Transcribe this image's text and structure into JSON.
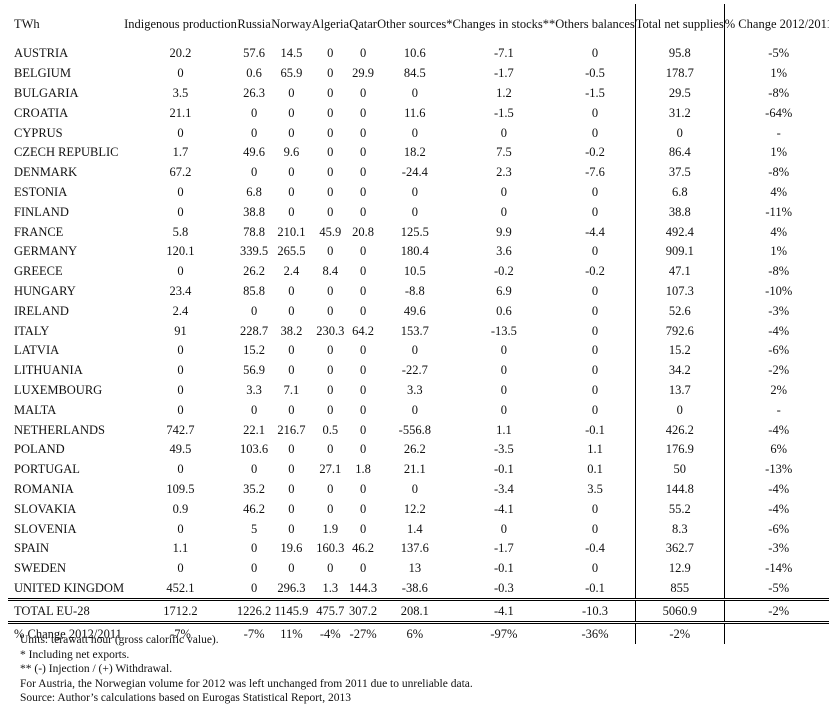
{
  "table": {
    "headers": [
      "TWh",
      "Indigenous production",
      "Russia",
      "Norway",
      "Algeria",
      "Qatar",
      "Other sources*",
      "Changes in stocks**",
      "Others balances",
      "Total net supplies",
      "% Change 2012/2011"
    ],
    "rows": [
      [
        "AUSTRIA",
        "20.2",
        "57.6",
        "14.5",
        "0",
        "0",
        "10.6",
        "-7.1",
        "0",
        "95.8",
        "-5%"
      ],
      [
        "BELGIUM",
        "0",
        "0.6",
        "65.9",
        "0",
        "29.9",
        "84.5",
        "-1.7",
        "-0.5",
        "178.7",
        "1%"
      ],
      [
        "BULGARIA",
        "3.5",
        "26.3",
        "0",
        "0",
        "0",
        "0",
        "1.2",
        "-1.5",
        "29.5",
        "-8%"
      ],
      [
        "CROATIA",
        "21.1",
        "0",
        "0",
        "0",
        "0",
        "11.6",
        "-1.5",
        "0",
        "31.2",
        "-64%"
      ],
      [
        "CYPRUS",
        "0",
        "0",
        "0",
        "0",
        "0",
        "0",
        "0",
        "0",
        "0",
        "-"
      ],
      [
        "CZECH REPUBLIC",
        "1.7",
        "49.6",
        "9.6",
        "0",
        "0",
        "18.2",
        "7.5",
        "-0.2",
        "86.4",
        "1%"
      ],
      [
        "DENMARK",
        "67.2",
        "0",
        "0",
        "0",
        "0",
        "-24.4",
        "2.3",
        "-7.6",
        "37.5",
        "-8%"
      ],
      [
        "ESTONIA",
        "0",
        "6.8",
        "0",
        "0",
        "0",
        "0",
        "0",
        "0",
        "6.8",
        "4%"
      ],
      [
        "FINLAND",
        "0",
        "38.8",
        "0",
        "0",
        "0",
        "0",
        "0",
        "0",
        "38.8",
        "-11%"
      ],
      [
        "FRANCE",
        "5.8",
        "78.8",
        "210.1",
        "45.9",
        "20.8",
        "125.5",
        "9.9",
        "-4.4",
        "492.4",
        "4%"
      ],
      [
        "GERMANY",
        "120.1",
        "339.5",
        "265.5",
        "0",
        "0",
        "180.4",
        "3.6",
        "0",
        "909.1",
        "1%"
      ],
      [
        "GREECE",
        "0",
        "26.2",
        "2.4",
        "8.4",
        "0",
        "10.5",
        "-0.2",
        "-0.2",
        "47.1",
        "-8%"
      ],
      [
        "HUNGARY",
        "23.4",
        "85.8",
        "0",
        "0",
        "0",
        "-8.8",
        "6.9",
        "0",
        "107.3",
        "-10%"
      ],
      [
        "IRELAND",
        "2.4",
        "0",
        "0",
        "0",
        "0",
        "49.6",
        "0.6",
        "0",
        "52.6",
        "-3%"
      ],
      [
        "ITALY",
        "91",
        "228.7",
        "38.2",
        "230.3",
        "64.2",
        "153.7",
        "-13.5",
        "0",
        "792.6",
        "-4%"
      ],
      [
        "LATVIA",
        "0",
        "15.2",
        "0",
        "0",
        "0",
        "0",
        "0",
        "0",
        "15.2",
        "-6%"
      ],
      [
        "LITHUANIA",
        "0",
        "56.9",
        "0",
        "0",
        "0",
        "-22.7",
        "0",
        "0",
        "34.2",
        "-2%"
      ],
      [
        "LUXEMBOURG",
        "0",
        "3.3",
        "7.1",
        "0",
        "0",
        "3.3",
        "0",
        "0",
        "13.7",
        "2%"
      ],
      [
        "MALTA",
        "0",
        "0",
        "0",
        "0",
        "0",
        "0",
        "0",
        "0",
        "0",
        "-"
      ],
      [
        "NETHERLANDS",
        "742.7",
        "22.1",
        "216.7",
        "0.5",
        "0",
        "-556.8",
        "1.1",
        "-0.1",
        "426.2",
        "-4%"
      ],
      [
        "POLAND",
        "49.5",
        "103.6",
        "0",
        "0",
        "0",
        "26.2",
        "-3.5",
        "1.1",
        "176.9",
        "6%"
      ],
      [
        "PORTUGAL",
        "0",
        "0",
        "0",
        "27.1",
        "1.8",
        "21.1",
        "-0.1",
        "0.1",
        "50",
        "-13%"
      ],
      [
        "ROMANIA",
        "109.5",
        "35.2",
        "0",
        "0",
        "0",
        "0",
        "-3.4",
        "3.5",
        "144.8",
        "-4%"
      ],
      [
        "SLOVAKIA",
        "0.9",
        "46.2",
        "0",
        "0",
        "0",
        "12.2",
        "-4.1",
        "0",
        "55.2",
        "-4%"
      ],
      [
        "SLOVENIA",
        "0",
        "5",
        "0",
        "1.9",
        "0",
        "1.4",
        "0",
        "0",
        "8.3",
        "-6%"
      ],
      [
        "SPAIN",
        "1.1",
        "0",
        "19.6",
        "160.3",
        "46.2",
        "137.6",
        "-1.7",
        "-0.4",
        "362.7",
        "-3%"
      ],
      [
        "SWEDEN",
        "0",
        "0",
        "0",
        "0",
        "0",
        "13",
        "-0.1",
        "0",
        "12.9",
        "-14%"
      ],
      [
        "UNITED KINGDOM",
        "452.1",
        "0",
        "296.3",
        "1.3",
        "144.3",
        "-38.6",
        "-0.3",
        "-0.1",
        "855",
        "-5%"
      ]
    ],
    "total": [
      "TOTAL EU-28",
      "1712.2",
      "1226.2",
      "1145.9",
      "475.7",
      "307.2",
      "208.1",
      "-4.1",
      "-10.3",
      "5060.9",
      "-2%"
    ],
    "change": [
      "% Change 2012/2011",
      "-7%",
      "-7%",
      "11%",
      "-4%",
      "-27%",
      "6%",
      "-97%",
      "-36%",
      "-2%",
      ""
    ]
  },
  "notes": [
    "Units: terawatt hour (gross calorific value).",
    "* Including net exports.",
    "** (-) Injection / (+) Withdrawal.",
    "For Austria, the Norwegian volume for 2012 was left unchanged from 2011 due to unreliable data.",
    "Source: Author’s calculations based on Eurogas Statistical Report, 2013"
  ]
}
